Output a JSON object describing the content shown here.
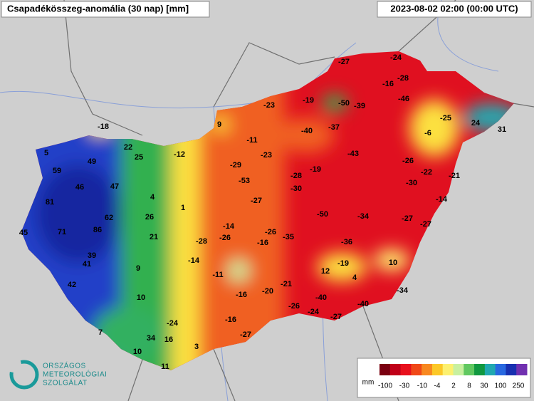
{
  "header": {
    "title": "Csapadékösszeg-anomália (30 nap) [mm]",
    "timestamp": "2023-08-02 02:00 (00:00 UTC)"
  },
  "stations": [
    -27,
    -24,
    -28,
    -16,
    -19,
    -50,
    -39,
    -46,
    -23,
    -25,
    9,
    -18,
    -40,
    -37,
    -6,
    24,
    31,
    -11,
    5,
    22,
    25,
    -12,
    -23,
    -43,
    -26,
    49,
    -29,
    -22,
    -21,
    59,
    -19,
    -28,
    -53,
    -30,
    46,
    47,
    -30,
    4,
    -27,
    -14,
    81,
    1,
    -50,
    -34,
    -27,
    62,
    26,
    -14,
    -27,
    45,
    71,
    86,
    21,
    -26,
    -35,
    -28,
    -26,
    -16,
    -36,
    39,
    41,
    -14,
    9,
    -19,
    10,
    12,
    4,
    -11,
    42,
    -21,
    -20,
    -16,
    -34,
    10,
    -40,
    -40,
    -26,
    -24,
    -24,
    -16,
    -27,
    7,
    -27,
    10,
    34,
    16,
    3,
    11
  ],
  "legend": {
    "unit": "mm",
    "labels": [
      "-100",
      "-30",
      "-10",
      "-4",
      "2",
      "8",
      "30",
      "100",
      "250"
    ],
    "colors": [
      "#7a0010",
      "#c00018",
      "#e8101c",
      "#f04818",
      "#f88820",
      "#fcc828",
      "#fcf070",
      "#c8f0a0",
      "#60c860",
      "#109840",
      "#20a8b0",
      "#2868e0",
      "#1830b0",
      "#7030b0"
    ]
  },
  "logo": {
    "line1": "ORSZÁGOS",
    "line2": "METEOROLÓGIAI",
    "line3": "SZOLGÁLAT"
  }
}
